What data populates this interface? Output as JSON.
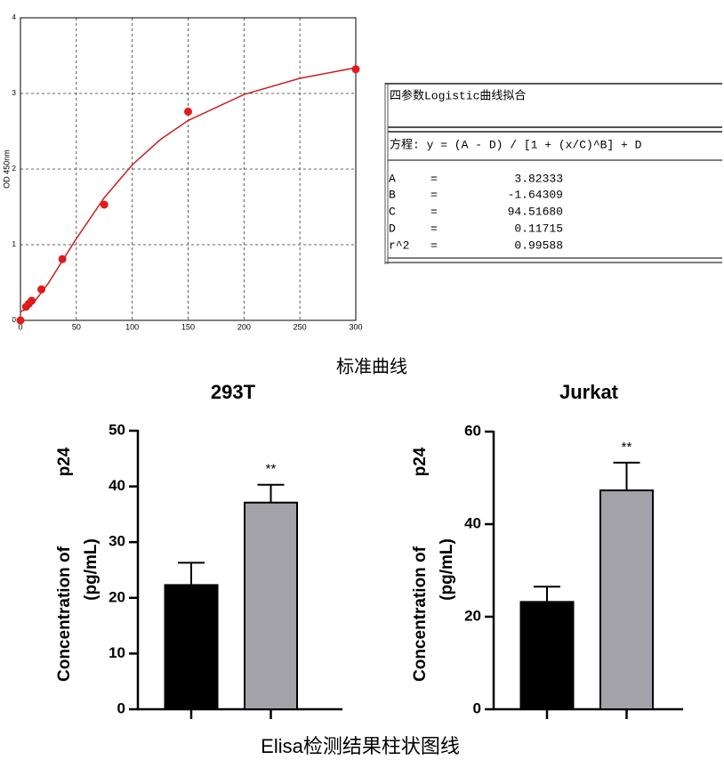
{
  "chart_data": [
    {
      "type": "scatter",
      "y_label": "OD 450nm",
      "xlim": [
        0,
        300
      ],
      "ylim": [
        0,
        4
      ],
      "xticks": [
        0,
        50,
        100,
        150,
        200,
        250,
        300
      ],
      "yticks": [
        0,
        1,
        2,
        3,
        4
      ],
      "grid": true,
      "series": [
        {
          "type": "scatter",
          "color": "#e31a1a",
          "x": [
            0,
            5,
            7.5,
            10,
            18.75,
            37.5,
            75,
            150,
            300
          ],
          "values": [
            0,
            0.18,
            0.22,
            0.26,
            0.41,
            0.81,
            1.53,
            2.76,
            3.32
          ]
        },
        {
          "type": "line",
          "color": "#cc1f1f",
          "x": [
            0,
            5,
            12.5,
            25,
            50,
            75,
            100,
            125,
            150,
            200,
            250,
            300
          ],
          "values": [
            0.117,
            0.146,
            0.246,
            0.492,
            1.08,
            1.622,
            2.056,
            2.388,
            2.642,
            2.986,
            3.2,
            3.34
          ]
        }
      ]
    },
    {
      "type": "bar",
      "title": "293T",
      "categories": [
        null,
        null
      ],
      "values": [
        22.3,
        37.1
      ],
      "errors": [
        4.0,
        3.2
      ],
      "colors": [
        "#000000",
        "#a2a2a8"
      ],
      "y_label": [
        "p24",
        "Concentration of",
        "(pg/mL)"
      ],
      "ylim": [
        0,
        50
      ],
      "yticks": [
        0,
        10,
        20,
        30,
        40,
        50
      ],
      "annotation": "**"
    },
    {
      "type": "bar",
      "title": "Jurkat",
      "categories": [
        null,
        null
      ],
      "values": [
        23.2,
        47.3
      ],
      "errors": [
        3.3,
        6.0
      ],
      "colors": [
        "#000000",
        "#a2a2a8"
      ],
      "y_label": [
        "p24",
        "Concentration of",
        "(pg/mL)"
      ],
      "ylim": [
        0,
        60
      ],
      "yticks": [
        0,
        20,
        40,
        60
      ],
      "annotation": "**"
    }
  ],
  "fit_table": {
    "title": "四参数Logistic曲线拟合",
    "equation": "方程: y = (A - D) / [1 + (x/C)^B] + D",
    "rows": [
      [
        "A",
        "=",
        "3.82333"
      ],
      [
        "B",
        "=",
        "-1.64309"
      ],
      [
        "C",
        "=",
        "94.51680"
      ],
      [
        "D",
        "=",
        "0.11715"
      ],
      [
        "r^2",
        "=",
        "0.99588"
      ]
    ]
  },
  "captions": [
    "标准曲线",
    "Elisa检测结果柱状图线"
  ]
}
